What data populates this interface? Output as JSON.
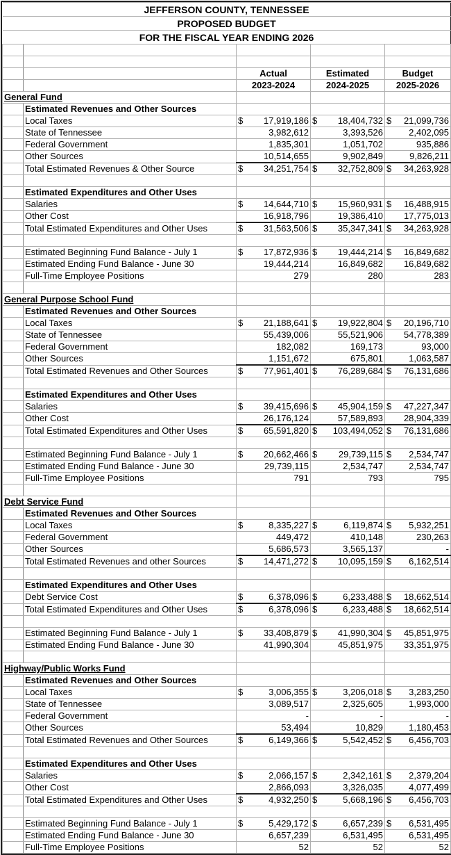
{
  "title": [
    "JEFFERSON COUNTY, TENNESSEE",
    "PROPOSED BUDGET",
    "FOR THE FISCAL YEAR ENDING 2026"
  ],
  "columns": [
    {
      "top": "Actual",
      "bottom": "2023-2024"
    },
    {
      "top": "Estimated",
      "bottom": "2024-2025"
    },
    {
      "top": "Budget",
      "bottom": "2025-2026"
    }
  ],
  "rows": [
    {
      "t": "section",
      "label": "General Fund"
    },
    {
      "t": "sub",
      "label": "Estimated Revenues and Other Sources"
    },
    {
      "t": "item",
      "label": "Local Taxes",
      "d": true,
      "v": [
        "17,919,186",
        "18,404,732",
        "21,099,736"
      ]
    },
    {
      "t": "item",
      "label": "State of Tennessee",
      "v": [
        "3,982,612",
        "3,393,526",
        "2,402,095"
      ]
    },
    {
      "t": "item",
      "label": "Federal Government",
      "v": [
        "1,835,301",
        "1,051,702",
        "935,886"
      ]
    },
    {
      "t": "item",
      "label": "Other Sources",
      "v": [
        "10,514,655",
        "9,902,849",
        "9,826,211"
      ]
    },
    {
      "t": "total",
      "label": "Total Estimated Revenues & Other Source",
      "d": true,
      "v": [
        "34,251,754",
        "32,752,809",
        "34,263,928"
      ]
    },
    {
      "t": "blank"
    },
    {
      "t": "sub",
      "label": "Estimated Expenditures and Other Uses"
    },
    {
      "t": "item",
      "label": "Salaries",
      "d": true,
      "v": [
        "14,644,710",
        "15,960,931",
        "16,488,915"
      ]
    },
    {
      "t": "item",
      "label": "Other Cost",
      "v": [
        "16,918,796",
        "19,386,410",
        "17,775,013"
      ]
    },
    {
      "t": "total",
      "label": "Total Estimated Expenditures and Other Uses",
      "d": true,
      "v": [
        "31,563,506",
        "35,347,341",
        "34,263,928"
      ]
    },
    {
      "t": "blank"
    },
    {
      "t": "item",
      "label": "Estimated Beginning Fund Balance - July 1",
      "d": true,
      "v": [
        "17,872,936",
        "19,444,214",
        "16,849,682"
      ]
    },
    {
      "t": "item",
      "label": "Estimated Ending Fund Balance - June 30",
      "v": [
        "19,444,214",
        "16,849,682",
        "16,849,682"
      ]
    },
    {
      "t": "item",
      "label": "Full-Time Employee Positions",
      "v": [
        "279",
        "280",
        "283"
      ]
    },
    {
      "t": "blank"
    },
    {
      "t": "section",
      "label": "General Purpose School Fund"
    },
    {
      "t": "sub",
      "label": "Estimated Revenues and Other Sources"
    },
    {
      "t": "item",
      "label": "Local Taxes",
      "d": true,
      "v": [
        "21,188,641",
        "19,922,804",
        "20,196,710"
      ]
    },
    {
      "t": "item",
      "label": "State of Tennessee",
      "v": [
        "55,439,006",
        "55,521,906",
        "54,778,389"
      ]
    },
    {
      "t": "item",
      "label": "Federal Government",
      "v": [
        "182,082",
        "169,173",
        "93,000"
      ]
    },
    {
      "t": "item",
      "label": "Other Sources",
      "v": [
        "1,151,672",
        "675,801",
        "1,063,587"
      ]
    },
    {
      "t": "total",
      "label": "Total Estimated Revenues and Other Sources",
      "d": true,
      "v": [
        "77,961,401",
        "76,289,684",
        "76,131,686"
      ]
    },
    {
      "t": "blank"
    },
    {
      "t": "sub",
      "label": "Estimated Expenditures and Other Uses"
    },
    {
      "t": "item",
      "label": "Salaries",
      "d": true,
      "v": [
        "39,415,696",
        "45,904,159",
        "47,227,347"
      ]
    },
    {
      "t": "item",
      "label": "Other Cost",
      "v": [
        "26,176,124",
        "57,589,893",
        "28,904,339"
      ]
    },
    {
      "t": "total",
      "label": "Total Estimated Expenditures and Other Uses",
      "d": true,
      "v": [
        "65,591,820",
        "103,494,052",
        "76,131,686"
      ]
    },
    {
      "t": "blank"
    },
    {
      "t": "item",
      "label": "Estimated Beginning Fund Balance - July 1",
      "d": true,
      "v": [
        "20,662,466",
        "29,739,115",
        "2,534,747"
      ]
    },
    {
      "t": "item",
      "label": "Estimated Ending Fund Balance - June 30",
      "v": [
        "29,739,115",
        "2,534,747",
        "2,534,747"
      ]
    },
    {
      "t": "item",
      "label": "Full-Time Employee Positions",
      "v": [
        "791",
        "793",
        "795"
      ]
    },
    {
      "t": "blank"
    },
    {
      "t": "section",
      "label": "Debt Service Fund"
    },
    {
      "t": "sub",
      "label": "Estimated Revenues and Other Sources"
    },
    {
      "t": "item",
      "label": "Local Taxes",
      "d": true,
      "v": [
        "8,335,227",
        "6,119,874",
        "5,932,251"
      ]
    },
    {
      "t": "item",
      "label": "Federal Government",
      "v": [
        "449,472",
        "410,148",
        "230,263"
      ]
    },
    {
      "t": "item",
      "label": "Other Sources",
      "v": [
        "5,686,573",
        "3,565,137",
        "-"
      ]
    },
    {
      "t": "total",
      "label": "Total Estimated Revenues and other Sources",
      "d": true,
      "v": [
        "14,471,272",
        "10,095,159",
        "6,162,514"
      ]
    },
    {
      "t": "blank"
    },
    {
      "t": "sub",
      "label": "Estimated Expenditures and Other Uses"
    },
    {
      "t": "item",
      "label": "Debt Service Cost",
      "d": true,
      "v": [
        "6,378,096",
        "6,233,488",
        "18,662,514"
      ]
    },
    {
      "t": "total",
      "label": "Total Estimated Expenditures and Other Uses",
      "d": true,
      "v": [
        "6,378,096",
        "6,233,488",
        "18,662,514"
      ]
    },
    {
      "t": "blank"
    },
    {
      "t": "item",
      "label": "Estimated Beginning Fund Balance - July 1",
      "d": true,
      "v": [
        "33,408,879",
        "41,990,304",
        "45,851,975"
      ]
    },
    {
      "t": "item",
      "label": "Estimated Ending Fund Balance - June 30",
      "v": [
        "41,990,304",
        "45,851,975",
        "33,351,975"
      ]
    },
    {
      "t": "blank"
    },
    {
      "t": "section",
      "label": "Highway/Public Works Fund"
    },
    {
      "t": "sub",
      "label": "Estimated Revenues and Other Sources"
    },
    {
      "t": "item",
      "label": "Local Taxes",
      "d": true,
      "v": [
        "3,006,355",
        "3,206,018",
        "3,283,250"
      ]
    },
    {
      "t": "item",
      "label": "State of Tennessee",
      "v": [
        "3,089,517",
        "2,325,605",
        "1,993,000"
      ]
    },
    {
      "t": "item",
      "label": "Federal Government",
      "v": [
        "-",
        "-",
        "-"
      ]
    },
    {
      "t": "item",
      "label": "Other Sources",
      "v": [
        "53,494",
        "10,829",
        "1,180,453"
      ]
    },
    {
      "t": "total",
      "label": "Total Estimated Revenues and Other Sources",
      "d": true,
      "v": [
        "6,149,366",
        "5,542,452",
        "6,456,703"
      ]
    },
    {
      "t": "blank"
    },
    {
      "t": "sub",
      "label": "Estimated Expenditures and Other Uses"
    },
    {
      "t": "item",
      "label": "Salaries",
      "d": true,
      "v": [
        "2,066,157",
        "2,342,161",
        "2,379,204"
      ]
    },
    {
      "t": "item",
      "label": "Other Cost",
      "v": [
        "2,866,093",
        "3,326,035",
        "4,077,499"
      ]
    },
    {
      "t": "total",
      "label": "Total Estimated Expenditures and Other Uses",
      "d": true,
      "v": [
        "4,932,250",
        "5,668,196",
        "6,456,703"
      ]
    },
    {
      "t": "blank"
    },
    {
      "t": "item",
      "label": "Estimated Beginning Fund Balance - July 1",
      "d": true,
      "v": [
        "5,429,172",
        "6,657,239",
        "6,531,495"
      ]
    },
    {
      "t": "item",
      "label": "Estimated Ending Fund Balance - June 30",
      "v": [
        "6,657,239",
        "6,531,495",
        "6,531,495"
      ]
    },
    {
      "t": "item",
      "label": "Full-Time Employee Positions",
      "v": [
        "52",
        "52",
        "52"
      ]
    }
  ],
  "currency_symbol": "$"
}
